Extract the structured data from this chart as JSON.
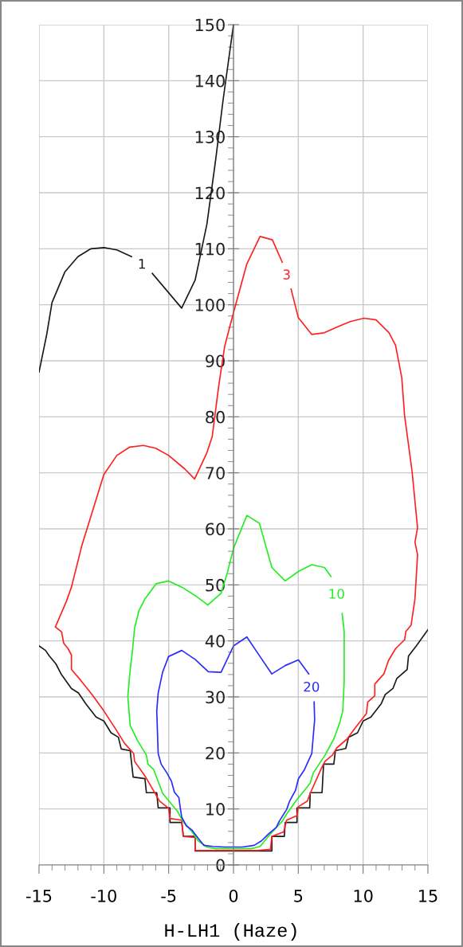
{
  "chart_data": {
    "type": "line",
    "xlabel": "H-LH1 (Haze)",
    "xlim": [
      -15,
      15
    ],
    "ylim": [
      0,
      150
    ],
    "xticks": [
      -15,
      {
        "value": -14,
        "label": null
      },
      {
        "value": -13,
        "label": null
      },
      {
        "value": -12,
        "label": null
      },
      {
        "value": -11,
        "label": null
      },
      -10,
      {
        "value": -9,
        "label": null
      },
      {
        "value": -8,
        "label": null
      },
      {
        "value": -7,
        "label": null
      },
      {
        "value": -6,
        "label": null
      },
      -5,
      {
        "value": -4,
        "label": null
      },
      {
        "value": -3,
        "label": null
      },
      {
        "value": -2,
        "label": null
      },
      {
        "value": -1,
        "label": null
      },
      0,
      {
        "value": 1,
        "label": null
      },
      {
        "value": 2,
        "label": null
      },
      {
        "value": 3,
        "label": null
      },
      {
        "value": 4,
        "label": null
      },
      5,
      {
        "value": 6,
        "label": null
      },
      {
        "value": 7,
        "label": null
      },
      {
        "value": 8,
        "label": null
      },
      {
        "value": 9,
        "label": null
      },
      10,
      {
        "value": 11,
        "label": null
      },
      {
        "value": 12,
        "label": null
      },
      {
        "value": 13,
        "label": null
      },
      {
        "value": 14,
        "label": null
      },
      15
    ],
    "yticks": [
      0,
      {
        "value": 2,
        "label": null
      },
      {
        "value": 4,
        "label": null
      },
      {
        "value": 6,
        "label": null
      },
      {
        "value": 8,
        "label": null
      },
      10,
      {
        "value": 12,
        "label": null
      },
      {
        "value": 14,
        "label": null
      },
      {
        "value": 16,
        "label": null
      },
      {
        "value": 18,
        "label": null
      },
      20,
      {
        "value": 22,
        "label": null
      },
      {
        "value": 24,
        "label": null
      },
      {
        "value": 26,
        "label": null
      },
      {
        "value": 28,
        "label": null
      },
      30,
      {
        "value": 32,
        "label": null
      },
      {
        "value": 34,
        "label": null
      },
      {
        "value": 36,
        "label": null
      },
      {
        "value": 38,
        "label": null
      },
      40,
      {
        "value": 42,
        "label": null
      },
      {
        "value": 44,
        "label": null
      },
      {
        "value": 46,
        "label": null
      },
      {
        "value": 48,
        "label": null
      },
      50,
      {
        "value": 52,
        "label": null
      },
      {
        "value": 54,
        "label": null
      },
      {
        "value": 56,
        "label": null
      },
      {
        "value": 58,
        "label": null
      },
      60,
      {
        "value": 62,
        "label": null
      },
      {
        "value": 64,
        "label": null
      },
      {
        "value": 66,
        "label": null
      },
      {
        "value": 68,
        "label": null
      },
      70,
      {
        "value": 72,
        "label": null
      },
      {
        "value": 74,
        "label": null
      },
      {
        "value": 76,
        "label": null
      },
      {
        "value": 78,
        "label": null
      },
      80,
      {
        "value": 82,
        "label": null
      },
      {
        "value": 84,
        "label": null
      },
      {
        "value": 86,
        "label": null
      },
      {
        "value": 88,
        "label": null
      },
      90,
      {
        "value": 92,
        "label": null
      },
      {
        "value": 94,
        "label": null
      },
      {
        "value": 96,
        "label": null
      },
      {
        "value": 98,
        "label": null
      },
      100,
      {
        "value": 102,
        "label": null
      },
      {
        "value": 104,
        "label": null
      },
      {
        "value": 106,
        "label": null
      },
      {
        "value": 108,
        "label": null
      },
      110,
      {
        "value": 112,
        "label": null
      },
      {
        "value": 114,
        "label": null
      },
      {
        "value": 116,
        "label": null
      },
      {
        "value": 118,
        "label": null
      },
      120,
      {
        "value": 122,
        "label": null
      },
      {
        "value": 124,
        "label": null
      },
      {
        "value": 126,
        "label": null
      },
      {
        "value": 128,
        "label": null
      },
      130,
      {
        "value": 132,
        "label": null
      },
      {
        "value": 134,
        "label": null
      },
      {
        "value": 136,
        "label": null
      },
      {
        "value": 138,
        "label": null
      },
      140,
      {
        "value": 142,
        "label": null
      },
      {
        "value": 144,
        "label": null
      },
      {
        "value": 146,
        "label": null
      },
      {
        "value": 148,
        "label": null
      },
      150
    ],
    "grid": true,
    "marker": "none",
    "line_style": "solid",
    "series": [
      {
        "name": "1",
        "color": "#1a1a1a",
        "x": [
          -15,
          -14.4,
          -14,
          -13,
          -12,
          -11,
          -10,
          -9,
          -7.86,
          null,
          -6.26,
          -4,
          -2.96,
          -2.05,
          -1.37,
          -0.8,
          0,
          null,
          -15,
          -14.5,
          -14.2,
          -13.7,
          -13.3,
          -12.5,
          -11.96,
          -11.4,
          -10.6,
          -10,
          -9.45,
          -8.88,
          -8.66,
          -7.97,
          -7.74,
          -6.83,
          -6.72,
          -5.92,
          -5.81,
          -4.9,
          -4.9,
          -3.99,
          -3.87,
          -2.96,
          -2.96,
          2.96,
          2.96,
          3.92,
          3.99,
          4.9,
          4.9,
          5.88,
          5.92,
          6.83,
          6.95,
          7.74,
          7.86,
          8.66,
          8.88,
          9.57,
          10,
          10.6,
          11.4,
          11.7,
          12.3,
          12.6,
          13.4,
          13.5,
          14.1,
          15
        ],
        "values": [
          88,
          94.8,
          100.4,
          105.9,
          108.6,
          110,
          110.2,
          109.8,
          108.6,
          null,
          105.6,
          99.4,
          104.4,
          114.4,
          126,
          136.6,
          150,
          null,
          39.1,
          38.3,
          37.3,
          35.9,
          34.1,
          31.5,
          30.7,
          28.8,
          26.4,
          25.7,
          23.6,
          22.8,
          20.7,
          20.4,
          15.7,
          15.4,
          12.9,
          12.9,
          10.2,
          10.2,
          7.6,
          7.6,
          5.1,
          5.1,
          2.5,
          2.5,
          5.1,
          5.1,
          7.6,
          7.6,
          10.2,
          10.2,
          12.9,
          12.9,
          18,
          18,
          20.4,
          20.8,
          22.8,
          23.6,
          25.7,
          26.4,
          28.8,
          30.4,
          31.5,
          33.3,
          34.9,
          37.3,
          39.1,
          42
        ]
      },
      {
        "name": "3",
        "color": "#ff2020",
        "x": [
          -13.74,
          -12.9,
          -12.5,
          -11.7,
          -10,
          -9,
          -8,
          -6.95,
          -6,
          -5,
          -3.76,
          -3,
          -2.05,
          -1.64,
          -1.14,
          -0.68,
          0,
          1.03,
          2.05,
          3,
          3.76,
          null,
          4.44,
          5,
          6.04,
          7,
          7.97,
          9,
          10.07,
          11,
          12,
          12.5,
          12.98,
          13.2,
          13.78,
          14,
          14.2,
          14,
          14.2,
          14,
          13.7,
          13.3,
          13.2,
          12.5,
          11.96,
          11.6,
          10.9,
          10.9,
          10.36,
          10.25,
          9.34,
          8.77,
          7.97,
          7.63,
          7.06,
          6.83,
          5.92,
          5.7,
          5,
          4.9,
          4.1,
          3.87,
          2.96,
          2.85,
          1.82,
          -2.96,
          -2.96,
          -3.87,
          -4,
          -4.9,
          -5,
          -5.7,
          -6.83,
          -7.63,
          -7.7,
          -8.4,
          -9.1,
          -10,
          -10.9,
          -11.8,
          -12.5,
          -12.5,
          -12.76,
          -13.1,
          -13.26,
          -13.74
        ],
        "values": [
          42.5,
          47,
          49.6,
          57,
          69.7,
          73.1,
          74.6,
          74.9,
          74.4,
          73.1,
          70.7,
          68.9,
          73.6,
          76.5,
          85.5,
          92.6,
          98.6,
          107.3,
          112.2,
          111.6,
          107.6,
          null,
          102.8,
          97.7,
          94.7,
          95,
          96,
          97,
          97.6,
          97.3,
          95,
          92.8,
          87,
          80.2,
          70.2,
          64.9,
          60.2,
          57.6,
          55.4,
          47.5,
          42.8,
          41.7,
          40.2,
          38.6,
          36.5,
          34.1,
          32.3,
          30.2,
          29.1,
          27,
          24.3,
          22.5,
          20.9,
          19.6,
          18.5,
          17.5,
          12.8,
          11.4,
          10.4,
          8.8,
          8,
          5.9,
          5.1,
          2.8,
          2.6,
          2.6,
          4.9,
          5.1,
          8,
          8.3,
          10.1,
          11.4,
          15.9,
          18.5,
          19.9,
          21.7,
          24.3,
          27.5,
          30.4,
          33,
          34.9,
          37.5,
          38.6,
          39.6,
          41.6,
          42.5
        ]
      },
      {
        "name": "10",
        "color": "#22ee22",
        "x": [
          -8.15,
          -7.97,
          -7.8,
          -7.63,
          -7.29,
          -6.83,
          -5.97,
          -5.01,
          -3.99,
          -2.96,
          -1.98,
          -0.96,
          -0.46,
          0,
          1.03,
          2,
          2.96,
          3.99,
          5.01,
          6.04,
          7.02,
          7.52,
          null,
          8.38,
          8.54,
          8.54,
          8.54,
          8.43,
          8.2,
          7.74,
          7.06,
          6.15,
          5.92,
          5.47,
          4.9,
          4.1,
          3.76,
          3.19,
          2.62,
          2.05,
          1.37,
          -1.37,
          -2.05,
          -2.73,
          -3.19,
          -3.87,
          -4.33,
          -4.9,
          -5.47,
          -6.15,
          -6.6,
          -6.72,
          -7.4,
          -7.97,
          -8.15
        ],
        "values": [
          30.1,
          34.9,
          38.1,
          42.3,
          45.4,
          47.5,
          50.2,
          50.7,
          49.6,
          48.1,
          46.4,
          48.5,
          52.3,
          56.5,
          62.4,
          61,
          53.1,
          50.7,
          52.4,
          53.6,
          53.1,
          51.5,
          null,
          44.9,
          41.7,
          37.9,
          32.8,
          27.5,
          25.4,
          22.5,
          19.6,
          16.4,
          14.6,
          13.3,
          11.7,
          9.1,
          7.8,
          6.4,
          4.9,
          3.3,
          2.9,
          2.9,
          3.2,
          4.3,
          5.9,
          7.7,
          9.6,
          11.2,
          12.8,
          17,
          18,
          19.6,
          22.2,
          24.9,
          30.1
        ]
      },
      {
        "name": "20",
        "color": "#2a2aff",
        "x": [
          -5.01,
          -3.99,
          -2.96,
          -1.94,
          -0.96,
          0,
          1.03,
          2.05,
          2.96,
          3.99,
          5.01,
          5.81,
          null,
          6.22,
          6.26,
          6.04,
          5.47,
          5.01,
          4.78,
          4.33,
          4.1,
          3.53,
          3.3,
          2.73,
          2.16,
          1.59,
          0.68,
          -0.68,
          -1.59,
          -2.28,
          -2.73,
          -3.19,
          -3.64,
          -3.99,
          -4.1,
          -4.21,
          -4.56,
          -4.78,
          -5.13,
          -5.58,
          -5.81,
          -5.92,
          -5.81,
          -5.47,
          -5.01
        ],
        "values": [
          37.2,
          38.3,
          36.7,
          34.5,
          34.4,
          39.1,
          40.7,
          37.2,
          34.1,
          35.6,
          36.6,
          34.1,
          null,
          29.1,
          25.9,
          19.9,
          17,
          15.4,
          13.3,
          11.4,
          9.9,
          7.8,
          6.7,
          5.6,
          4.3,
          3.5,
          3.2,
          3.2,
          3.3,
          3.5,
          4.8,
          6.2,
          7,
          8.5,
          10.1,
          12,
          13,
          14.9,
          16.4,
          18,
          19.9,
          27.5,
          30.7,
          34.4,
          37.2
        ]
      }
    ]
  }
}
